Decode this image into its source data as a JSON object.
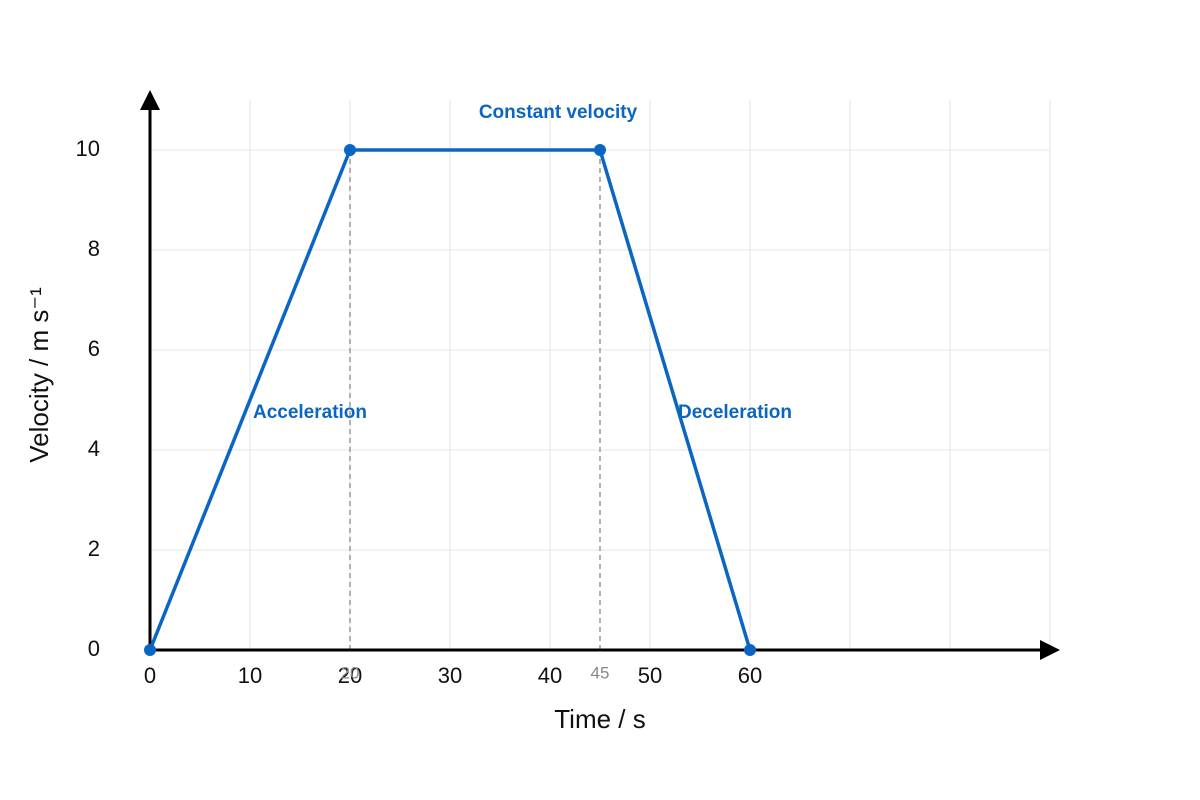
{
  "chart_data": {
    "type": "line",
    "x_label": "Time / s",
    "y_label": "Velocity / m s⁻¹",
    "x": [
      0,
      20,
      45,
      60
    ],
    "series": [
      {
        "name": "Velocity",
        "color": "#0b66c3",
        "values": [
          0,
          10,
          10,
          0
        ]
      }
    ],
    "xlim": [
      0,
      90
    ],
    "ylim": [
      0,
      11
    ],
    "xticks": [
      0,
      10,
      20,
      30,
      40,
      50,
      60,
      {
        "value": 70,
        "label": null
      },
      {
        "value": 80,
        "label": null
      },
      {
        "value": 90,
        "label": null
      }
    ],
    "yticks": [
      0,
      2,
      4,
      6,
      8,
      10
    ],
    "grid": true,
    "reference_lines": [
      20,
      45
    ],
    "annotations": [
      "Constant velocity",
      "Acceleration",
      "Deceleration"
    ]
  }
}
